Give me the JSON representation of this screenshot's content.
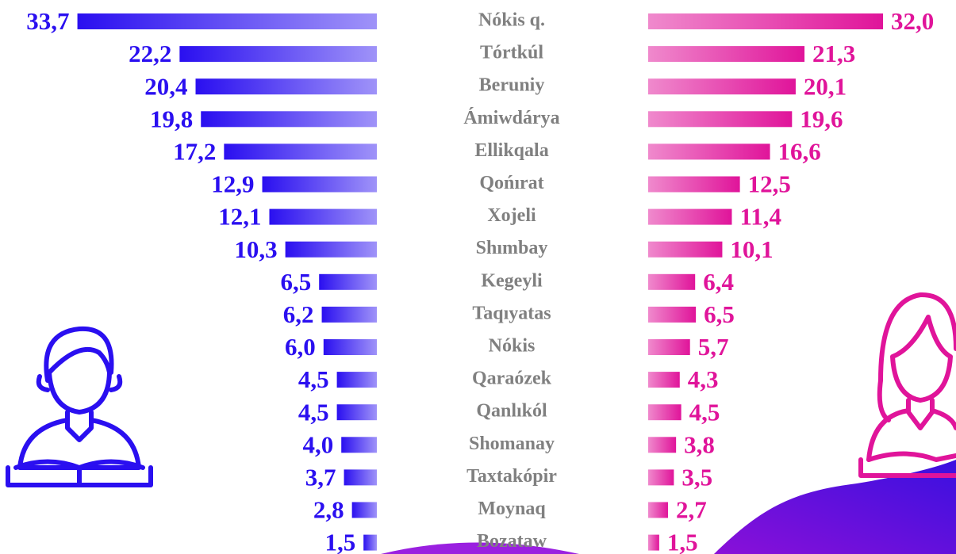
{
  "chart_data": {
    "type": "bar",
    "categories": [
      "Nókis q.",
      "Tórtkúl",
      "Beruniy",
      "Ámiwdárya",
      "Ellikqala",
      "Qońırat",
      "Xojeli",
      "Shımbay",
      "Kegeyli",
      "Taqıyatas",
      "Nókis",
      "Qaraózek",
      "Qanlıkól",
      "Shomanay",
      "Taxtakópir",
      "Moynaq",
      "Bozataw"
    ],
    "series": [
      {
        "color": "#2a0ff0",
        "values": [
          33.7,
          22.2,
          20.4,
          19.8,
          17.2,
          12.9,
          12.1,
          10.3,
          6.5,
          6.2,
          6.0,
          4.5,
          4.5,
          4.0,
          3.7,
          2.8,
          1.5
        ],
        "value_labels": [
          "33,7",
          "22,2",
          "20,4",
          "19,8",
          "17,2",
          "12,9",
          "12,1",
          "10,3",
          "6,5",
          "6,2",
          "6,0",
          "4,5",
          "4,5",
          "4,0",
          "3,7",
          "2,8",
          "1,5"
        ]
      },
      {
        "color": "#e0149a",
        "values": [
          32.0,
          21.3,
          20.1,
          19.6,
          16.6,
          12.5,
          11.4,
          10.1,
          6.4,
          6.5,
          5.7,
          4.3,
          4.5,
          3.8,
          3.5,
          2.7,
          1.5
        ],
        "value_labels": [
          "32,0",
          "21,3",
          "20,1",
          "19,6",
          "16,6",
          "12,5",
          "11,4",
          "10,1",
          "6,4",
          "6,5",
          "5,7",
          "4,3",
          "4,5",
          "3,8",
          "3,5",
          "2,7",
          "1,5"
        ]
      }
    ]
  }
}
